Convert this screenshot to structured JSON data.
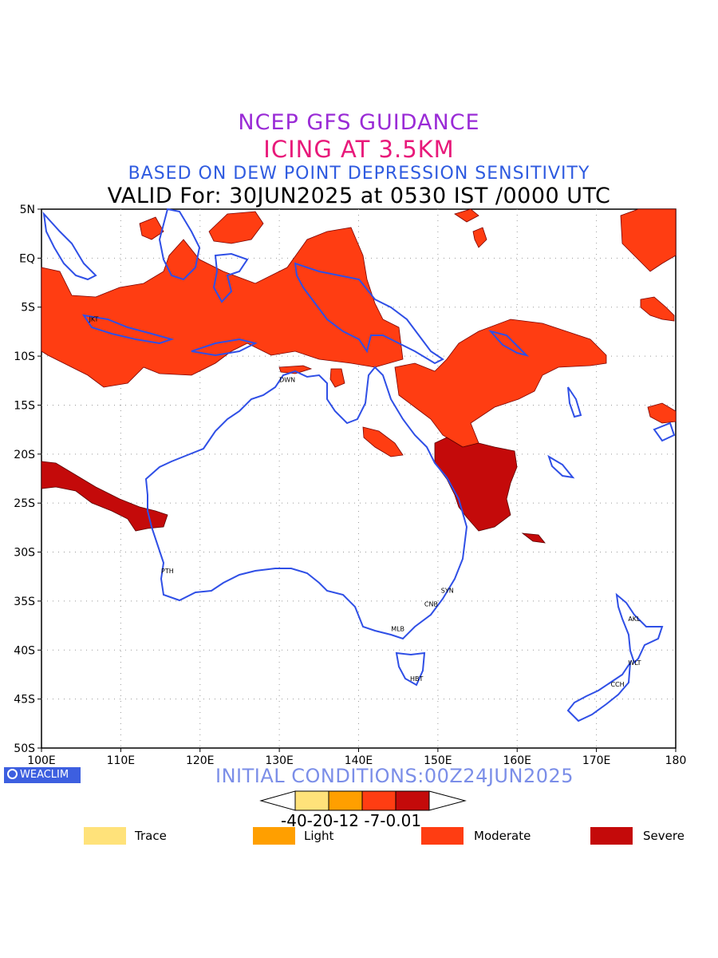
{
  "header": {
    "line1": "NCEP GFS GUIDANCE",
    "line2": "ICING AT 3.5KM",
    "line3": "BASED ON DEW POINT DEPRESSION SENSITIVITY",
    "line4": "VALID For: 30JUN2025 at 0530 IST /0000 UTC"
  },
  "map": {
    "lon_labels": [
      "100E",
      "110E",
      "120E",
      "130E",
      "140E",
      "150E",
      "160E",
      "170E",
      "180"
    ],
    "lat_labels": [
      "5N",
      "EQ",
      "5S",
      "10S",
      "15S",
      "20S",
      "25S",
      "30S",
      "35S",
      "40S",
      "45S",
      "50S"
    ],
    "cities": [
      {
        "code": "JKT",
        "lon": 106.8,
        "lat": -6.2
      },
      {
        "code": "DWN",
        "lon": 130.8,
        "lat": -12.4
      },
      {
        "code": "PTH",
        "lon": 115.9,
        "lat": -31.9
      },
      {
        "code": "SYN",
        "lon": 151.2,
        "lat": -33.9
      },
      {
        "code": "CNB",
        "lon": 149.1,
        "lat": -35.3
      },
      {
        "code": "MLB",
        "lon": 144.9,
        "lat": -37.8
      },
      {
        "code": "HBT",
        "lon": 147.3,
        "lat": -42.9
      },
      {
        "code": "AKL",
        "lon": 174.8,
        "lat": -36.8
      },
      {
        "code": "WLT",
        "lon": 174.8,
        "lat": -41.3
      },
      {
        "code": "CCH",
        "lon": 172.6,
        "lat": -43.5
      }
    ],
    "colors": {
      "coast": "#2f4fe6",
      "moderate": "#ff3d12",
      "severe": "#c40a0a",
      "light": "#ff9f00",
      "trace": "#ffe27a"
    }
  },
  "footer": {
    "brand": "WEACLIM",
    "initial_conditions": "INITIAL CONDITIONS:00Z24JUN2025",
    "colorbar_labels": "-40-20-12 -7-0.01",
    "legend": [
      {
        "label": "Trace",
        "color": "#ffe27a"
      },
      {
        "label": "Light",
        "color": "#ff9f00"
      },
      {
        "label": "Moderate",
        "color": "#ff3d12"
      },
      {
        "label": "Severe",
        "color": "#c40a0a"
      }
    ]
  }
}
